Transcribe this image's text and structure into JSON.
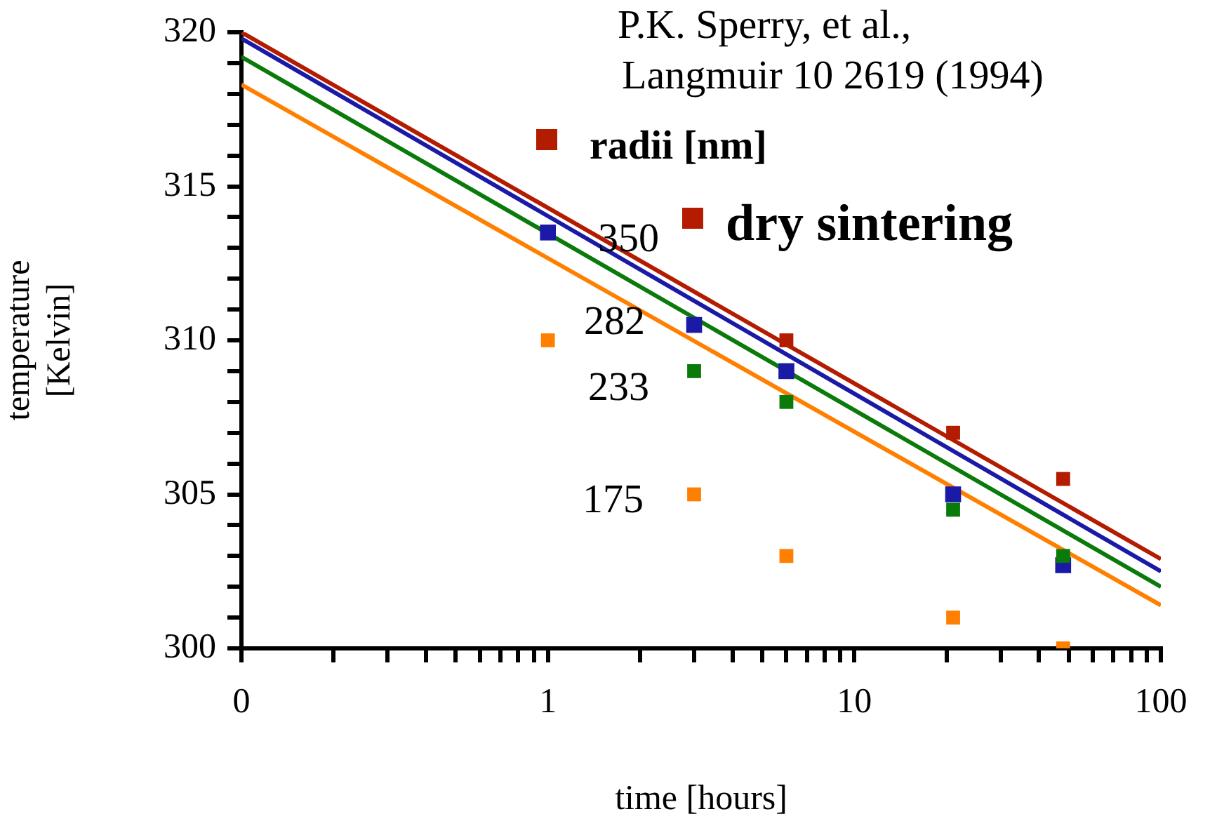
{
  "chart_data": {
    "type": "scatter",
    "xlabel": "time [hours]",
    "ylabel": "temperature [Kelvin]",
    "log": "x",
    "grid": false,
    "legend": false,
    "marker": "square",
    "xlim": [
      0.1,
      100
    ],
    "ylim": [
      300,
      320
    ],
    "xticks": [
      {
        "value": 0.1,
        "label": "0"
      },
      {
        "value": 0.2,
        "label": null
      },
      {
        "value": 0.3,
        "label": null
      },
      {
        "value": 0.4,
        "label": null
      },
      {
        "value": 0.5,
        "label": null
      },
      {
        "value": 0.6,
        "label": null
      },
      {
        "value": 0.7,
        "label": null
      },
      {
        "value": 0.8,
        "label": null
      },
      {
        "value": 0.9,
        "label": null
      },
      1,
      {
        "value": 2,
        "label": null
      },
      {
        "value": 3,
        "label": null
      },
      {
        "value": 4,
        "label": null
      },
      {
        "value": 5,
        "label": null
      },
      {
        "value": 6,
        "label": null
      },
      {
        "value": 7,
        "label": null
      },
      {
        "value": 8,
        "label": null
      },
      {
        "value": 9,
        "label": null
      },
      10,
      {
        "value": 20,
        "label": null
      },
      {
        "value": 30,
        "label": null
      },
      {
        "value": 40,
        "label": null
      },
      {
        "value": 50,
        "label": null
      },
      {
        "value": 60,
        "label": null
      },
      {
        "value": 70,
        "label": null
      },
      {
        "value": 80,
        "label": null
      },
      {
        "value": 90,
        "label": null
      },
      100
    ],
    "yticks": [
      300,
      {
        "value": 301,
        "label": null
      },
      {
        "value": 302,
        "label": null
      },
      {
        "value": 303,
        "label": null
      },
      {
        "value": 304,
        "label": null
      },
      305,
      {
        "value": 306,
        "label": null
      },
      {
        "value": 307,
        "label": null
      },
      {
        "value": 308,
        "label": null
      },
      {
        "value": 309,
        "label": null
      },
      310,
      {
        "value": 311,
        "label": null
      },
      {
        "value": 312,
        "label": null
      },
      {
        "value": 313,
        "label": null
      },
      {
        "value": 314,
        "label": null
      },
      315,
      {
        "value": 316,
        "label": null
      },
      {
        "value": 317,
        "label": null
      },
      {
        "value": 318,
        "label": null
      },
      {
        "value": 319,
        "label": null
      },
      320
    ],
    "series": [
      {
        "type": "line",
        "color": "#b31c00",
        "marker": "none",
        "x": [
          0.1,
          100
        ],
        "values": [
          320,
          302.9
        ]
      },
      {
        "type": "line",
        "color": "#1a1aa6",
        "marker": "none",
        "x": [
          0.1,
          100
        ],
        "values": [
          319.8,
          302.5
        ]
      },
      {
        "type": "line",
        "color": "#0a7a0a",
        "marker": "none",
        "x": [
          0.1,
          100
        ],
        "values": [
          319.2,
          302.0
        ]
      },
      {
        "type": "line",
        "color": "#ff8000",
        "marker": "none",
        "x": [
          0.1,
          100
        ],
        "values": [
          318.3,
          301.4
        ]
      },
      {
        "color": "#b31c00",
        "x": [
          6,
          21,
          48
        ],
        "values": [
          310,
          307,
          305.5
        ]
      },
      {
        "color": "#0a7a0a",
        "x": [
          3,
          6,
          21,
          48
        ],
        "values": [
          309,
          308,
          304.5,
          303
        ]
      },
      {
        "color": "#ff8000",
        "x": [
          1,
          3,
          6,
          21,
          48
        ],
        "values": [
          310,
          305,
          303,
          301,
          300
        ]
      },
      {
        "color": "#1a1aa6",
        "x": [
          1,
          3,
          6,
          21,
          48
        ],
        "values": [
          313.5,
          310.5,
          309,
          305,
          302.7
        ]
      }
    ],
    "annotations": [
      "P.K. Sperry, et al.,",
      "Langmuir 10 2619 (1994)",
      "radii [nm]",
      "350",
      "dry sintering",
      "282",
      "233",
      "175"
    ]
  }
}
